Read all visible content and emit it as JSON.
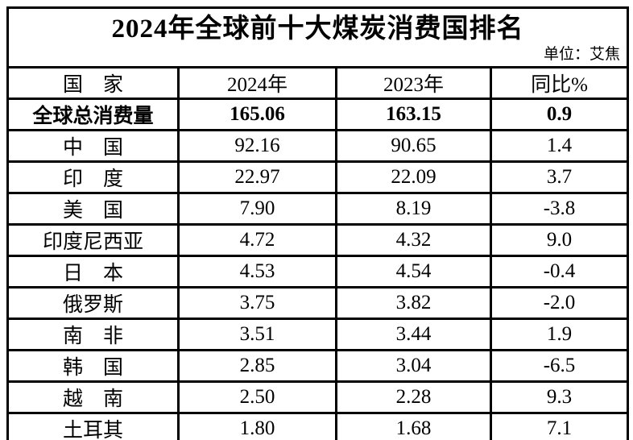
{
  "chart_data": {
    "type": "table",
    "title": "2024年全球前十大煤炭消费国排名",
    "unit_note": "单位：艾焦",
    "columns": [
      "国　家",
      "2024年",
      "2023年",
      "同比%"
    ],
    "rows": [
      [
        "全球总消费量",
        "165.06",
        "163.15",
        "0.9"
      ],
      [
        "中　国",
        "92.16",
        "90.65",
        "1.4"
      ],
      [
        "印　度",
        "22.97",
        "22.09",
        "3.7"
      ],
      [
        "美　国",
        "7.90",
        "8.19",
        "-3.8"
      ],
      [
        "印度尼西亚",
        "4.72",
        "4.32",
        "9.0"
      ],
      [
        "日　本",
        "4.53",
        "4.54",
        "-0.4"
      ],
      [
        "俄罗斯",
        "3.75",
        "3.82",
        "-2.0"
      ],
      [
        "南　非",
        "3.51",
        "3.44",
        "1.9"
      ],
      [
        "韩　国",
        "2.85",
        "3.04",
        "-6.5"
      ],
      [
        "越　南",
        "2.50",
        "2.28",
        "9.3"
      ],
      [
        "土耳其",
        "1.80",
        "1.68",
        "7.1"
      ]
    ],
    "styles": {
      "border_color": "#000000",
      "text_color": "#000000",
      "background": "#ffffff"
    },
    "notes": "Row 0 (全球总消费量) is the bold global-total row; rows 1-10 are the top ten coal consuming countries."
  }
}
